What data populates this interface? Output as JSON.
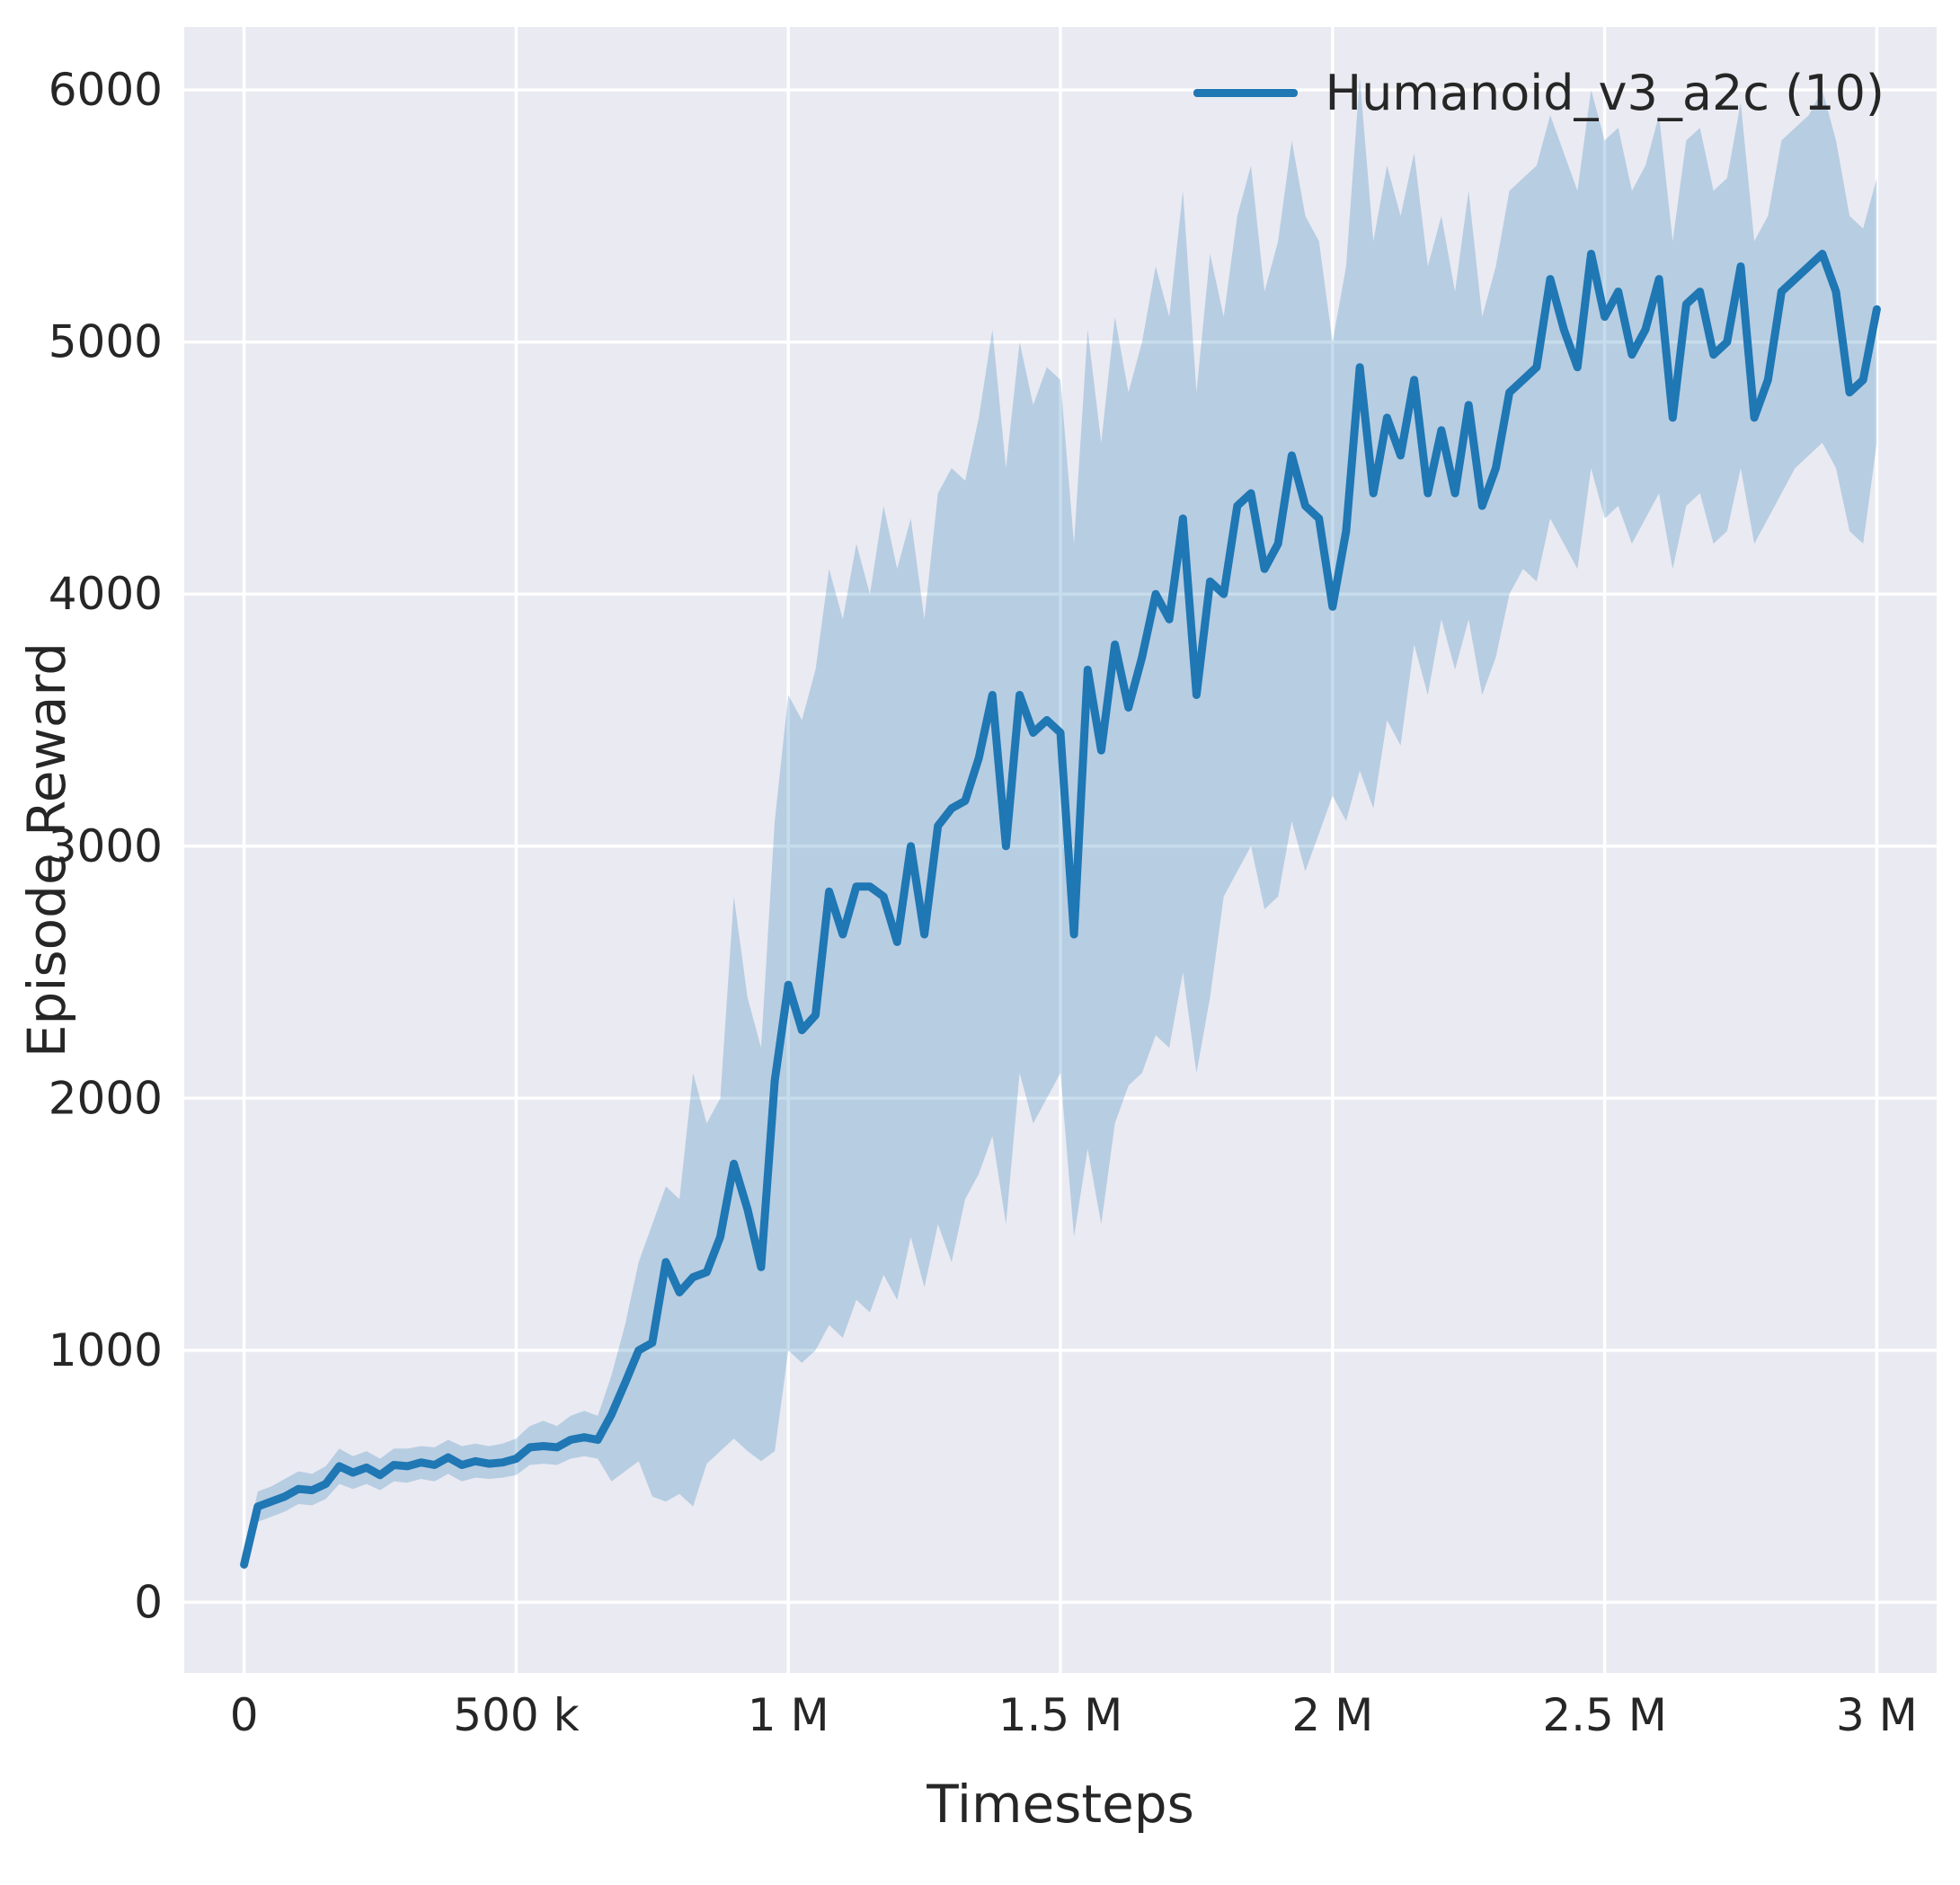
{
  "chart_data": {
    "type": "line",
    "title": "",
    "xlabel": "Timesteps",
    "ylabel": "Episode Reward",
    "legend": {
      "position": "upper right",
      "frame": false,
      "entries": [
        "Humanoid_v3_a2c (10)"
      ]
    },
    "grid": true,
    "xlim": [
      -110000,
      3110000
    ],
    "ylim": [
      -280,
      6250
    ],
    "x_tick_values": [
      0,
      500000,
      1000000,
      1500000,
      2000000,
      2500000,
      3000000
    ],
    "x_tick_labels": [
      "0",
      "500 k",
      "1 M",
      "1.5 M",
      "2 M",
      "2.5 M",
      "3 M"
    ],
    "y_tick_values": [
      0,
      1000,
      2000,
      3000,
      4000,
      5000,
      6000
    ],
    "y_tick_labels": [
      "0",
      "1000",
      "2000",
      "3000",
      "4000",
      "5000",
      "6000"
    ],
    "colors": {
      "figure_bg": "#ffffff",
      "axes_bg": "#eaeaf2",
      "grid": "#ffffff",
      "line": "#1f77b4",
      "band": "rgba(31,119,180,0.25)",
      "text": "#262626"
    },
    "x": [
      0,
      25000,
      50000,
      75000,
      100000,
      125000,
      150000,
      175000,
      200000,
      225000,
      250000,
      275000,
      300000,
      325000,
      350000,
      375000,
      400000,
      425000,
      450000,
      475000,
      500000,
      525000,
      550000,
      575000,
      600000,
      625000,
      650000,
      675000,
      700000,
      725000,
      750000,
      775000,
      800000,
      825000,
      850000,
      875000,
      900000,
      925000,
      950000,
      975000,
      1000000,
      1025000,
      1050000,
      1075000,
      1100000,
      1125000,
      1150000,
      1175000,
      1200000,
      1225000,
      1250000,
      1275000,
      1300000,
      1325000,
      1350000,
      1375000,
      1400000,
      1425000,
      1450000,
      1475000,
      1500000,
      1525000,
      1550000,
      1575000,
      1600000,
      1625000,
      1650000,
      1675000,
      1700000,
      1725000,
      1750000,
      1775000,
      1800000,
      1825000,
      1850000,
      1875000,
      1900000,
      1925000,
      1950000,
      1975000,
      2000000,
      2025000,
      2050000,
      2075000,
      2100000,
      2125000,
      2150000,
      2175000,
      2200000,
      2225000,
      2250000,
      2275000,
      2300000,
      2325000,
      2350000,
      2375000,
      2400000,
      2425000,
      2450000,
      2475000,
      2500000,
      2525000,
      2550000,
      2575000,
      2600000,
      2625000,
      2650000,
      2675000,
      2700000,
      2725000,
      2750000,
      2775000,
      2800000,
      2825000,
      2850000,
      2875000,
      2900000,
      2925000,
      2950000,
      2975000,
      3000000
    ],
    "series": [
      {
        "name": "Humanoid_v3_a2c (10)",
        "values": [
          150,
          380,
          400,
          420,
          450,
          445,
          470,
          540,
          515,
          535,
          505,
          545,
          540,
          555,
          545,
          575,
          545,
          560,
          550,
          555,
          570,
          615,
          620,
          615,
          645,
          655,
          645,
          745,
          870,
          1000,
          1030,
          1350,
          1230,
          1290,
          1310,
          1450,
          1740,
          1560,
          1330,
          2070,
          2450,
          2270,
          2330,
          2820,
          2650,
          2840,
          2840,
          2800,
          2620,
          3000,
          2650,
          3080,
          3150,
          3180,
          3350,
          3600,
          3000,
          3600,
          3450,
          3500,
          3450,
          2650,
          3700,
          3380,
          3800,
          3550,
          3750,
          4000,
          3900,
          4300,
          3600,
          4050,
          4000,
          4350,
          4400,
          4100,
          4200,
          4550,
          4350,
          4300,
          3950,
          4250,
          4900,
          4400,
          4700,
          4550,
          4850,
          4400,
          4650,
          4400,
          4750,
          4350,
          4500,
          4800,
          4850,
          4900,
          5250,
          5050,
          4900,
          5350,
          5100,
          5200,
          4950,
          5050,
          5250,
          4700,
          5150,
          5200,
          4950,
          5000,
          5300,
          4700,
          4850,
          5200,
          5250,
          5300,
          5350,
          5200,
          4800,
          4850,
          5130
        ]
      }
    ],
    "band_lower": [
      120,
      320,
      340,
      360,
      390,
      385,
      410,
      470,
      450,
      470,
      445,
      480,
      475,
      490,
      480,
      510,
      480,
      495,
      490,
      495,
      505,
      545,
      550,
      545,
      570,
      580,
      570,
      480,
      520,
      560,
      420,
      400,
      430,
      380,
      550,
      600,
      650,
      600,
      560,
      600,
      1000,
      950,
      1000,
      1100,
      1050,
      1200,
      1150,
      1300,
      1200,
      1450,
      1250,
      1500,
      1350,
      1600,
      1700,
      1850,
      1500,
      2100,
      1900,
      2000,
      2100,
      1450,
      1800,
      1500,
      1900,
      2050,
      2100,
      2250,
      2200,
      2500,
      2100,
      2400,
      2800,
      2900,
      3000,
      2750,
      2800,
      3100,
      2900,
      3050,
      3200,
      3100,
      3300,
      3150,
      3500,
      3400,
      3800,
      3600,
      3900,
      3700,
      3900,
      3600,
      3750,
      4000,
      4100,
      4050,
      4300,
      4200,
      4100,
      4500,
      4300,
      4350,
      4200,
      4300,
      4400,
      4100,
      4350,
      4400,
      4200,
      4250,
      4500,
      4200,
      4300,
      4400,
      4500,
      4550,
      4600,
      4500,
      4250,
      4200,
      4600
    ],
    "band_upper": [
      180,
      440,
      460,
      490,
      520,
      510,
      540,
      610,
      580,
      600,
      570,
      610,
      610,
      620,
      615,
      645,
      620,
      630,
      620,
      630,
      650,
      700,
      720,
      700,
      740,
      760,
      740,
      900,
      1100,
      1350,
      1500,
      1650,
      1600,
      2100,
      1900,
      2000,
      2800,
      2400,
      2200,
      3100,
      3600,
      3500,
      3700,
      4100,
      3900,
      4200,
      4000,
      4350,
      4100,
      4300,
      3900,
      4400,
      4500,
      4450,
      4700,
      5050,
      4500,
      5000,
      4750,
      4900,
      4850,
      4200,
      5050,
      4600,
      5100,
      4800,
      5000,
      5300,
      5100,
      5600,
      4800,
      5350,
      5100,
      5500,
      5700,
      5200,
      5400,
      5800,
      5500,
      5400,
      5000,
      5300,
      6050,
      5400,
      5700,
      5500,
      5750,
      5300,
      5500,
      5200,
      5600,
      5100,
      5300,
      5600,
      5650,
      5700,
      5900,
      5750,
      5600,
      6000,
      5800,
      5850,
      5600,
      5700,
      5900,
      5400,
      5800,
      5850,
      5600,
      5650,
      5950,
      5400,
      5500,
      5800,
      5850,
      5900,
      6000,
      5800,
      5500,
      5450,
      5650
    ]
  }
}
